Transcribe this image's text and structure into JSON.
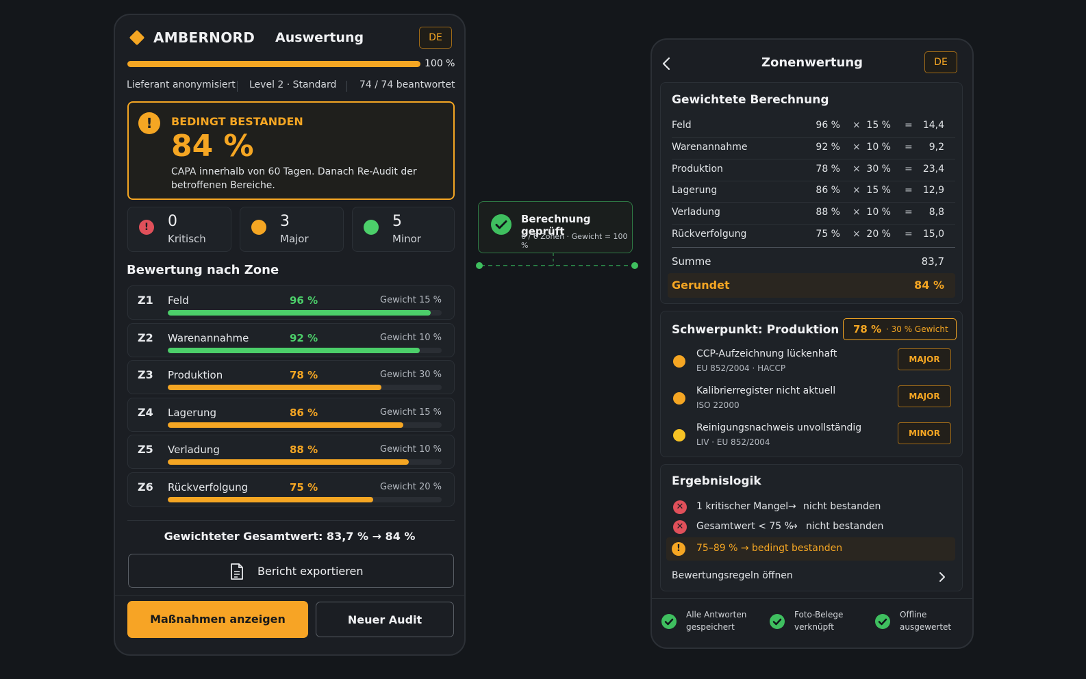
{
  "left": {
    "brand": "AMBERNORD",
    "title": "Auswertung",
    "lang": "DE",
    "progress": {
      "value": 100,
      "label": "100 %"
    },
    "meta": {
      "supplier": "Lieferant anonymisiert",
      "level": "Level 2 · Standard",
      "answered": "74 / 74 beantwortet"
    },
    "result": {
      "status": "BEDINGT BESTANDEN",
      "percent": "84 %",
      "note_line1": "CAPA innerhalb von 60 Tagen. Danach Re-Audit der",
      "note_line2": "betroffenen Bereiche."
    },
    "counts": [
      {
        "num": "0",
        "label": "Kritisch",
        "color": "#e0505a"
      },
      {
        "num": "3",
        "label": "Major",
        "color": "#f5a623"
      },
      {
        "num": "5",
        "label": "Minor",
        "color": "#4ccf6a"
      }
    ],
    "zones_title": "Bewertung nach Zone",
    "zones": [
      {
        "id": "Z1",
        "name": "Feld",
        "pct": "96 %",
        "value": 96,
        "weight": "Gewicht 15 %",
        "color": "#4ccf6a"
      },
      {
        "id": "Z2",
        "name": "Warenannahme",
        "pct": "92 %",
        "value": 92,
        "weight": "Gewicht 10 %",
        "color": "#4ccf6a"
      },
      {
        "id": "Z3",
        "name": "Produktion",
        "pct": "78 %",
        "value": 78,
        "weight": "Gewicht 30 %",
        "color": "#f5a623"
      },
      {
        "id": "Z4",
        "name": "Lagerung",
        "pct": "86 %",
        "value": 86,
        "weight": "Gewicht 15 %",
        "color": "#f5a623"
      },
      {
        "id": "Z5",
        "name": "Verladung",
        "pct": "88 %",
        "value": 88,
        "weight": "Gewicht 10 %",
        "color": "#f5a623"
      },
      {
        "id": "Z6",
        "name": "Rückverfolgung",
        "pct": "75 %",
        "value": 75,
        "weight": "Gewicht 20 %",
        "color": "#f5a623"
      }
    ],
    "total": "Gewichteter Gesamtwert: 83,7 % → 84 %",
    "export_label": "Bericht exportieren",
    "actions_label": "Maßnahmen anzeigen",
    "new_audit_label": "Neuer Audit"
  },
  "check": {
    "title": "Berechnung geprüft",
    "sub": "6 / 6 Zonen · Gewicht = 100 %"
  },
  "right": {
    "title": "Zonenwertung",
    "lang": "DE",
    "calc_title": "Gewichtete Berechnung",
    "calc": [
      {
        "name": "Feld",
        "pct": "96 %",
        "weight": "15 %",
        "res": "14,4"
      },
      {
        "name": "Warenannahme",
        "pct": "92 %",
        "weight": "10 %",
        "res": "9,2"
      },
      {
        "name": "Produktion",
        "pct": "78 %",
        "weight": "30 %",
        "res": "23,4"
      },
      {
        "name": "Lagerung",
        "pct": "86 %",
        "weight": "15 %",
        "res": "12,9"
      },
      {
        "name": "Verladung",
        "pct": "88 %",
        "weight": "10 %",
        "res": "8,8"
      },
      {
        "name": "Rückverfolgung",
        "pct": "75 %",
        "weight": "20 %",
        "res": "15,0"
      }
    ],
    "times": "×",
    "equals": "=",
    "sum_label": "Summe",
    "sum_value": "83,7",
    "rounded_label": "Gerundet",
    "rounded_value": "84 %",
    "focus_title": "Schwerpunkt: Produktion",
    "focus_badge_pct": "78 %",
    "focus_badge_weight": "· 30 % Gewicht",
    "findings": [
      {
        "title": "CCP-Aufzeichnung lückenhaft",
        "sub": "EU 852/2004 · HACCP",
        "badge": "MAJOR",
        "color": "#f5a623"
      },
      {
        "title": "Kalibrierregister nicht aktuell",
        "sub": "ISO 22000",
        "badge": "MAJOR",
        "color": "#f5a623"
      },
      {
        "title": "Reinigungsnachweis unvollständig",
        "sub": "LIV · EU 852/2004",
        "badge": "MINOR",
        "color": "#f7c325"
      }
    ],
    "logic_title": "Ergebnislogik",
    "logic": [
      {
        "cond": "1 kritischer Mangel",
        "res": "nicht bestanden"
      },
      {
        "cond": "Gesamtwert < 75 %",
        "res": "nicht bestanden"
      }
    ],
    "logic_highlight": "75–89 % → bedingt bestanden",
    "rules_link": "Bewertungsregeln öffnen",
    "footer": [
      {
        "l1": "Alle Antworten",
        "l2": "gespeichert"
      },
      {
        "l1": "Foto-Belege",
        "l2": "verknüpft"
      },
      {
        "l1": "Offline",
        "l2": "ausgewertet"
      }
    ]
  }
}
